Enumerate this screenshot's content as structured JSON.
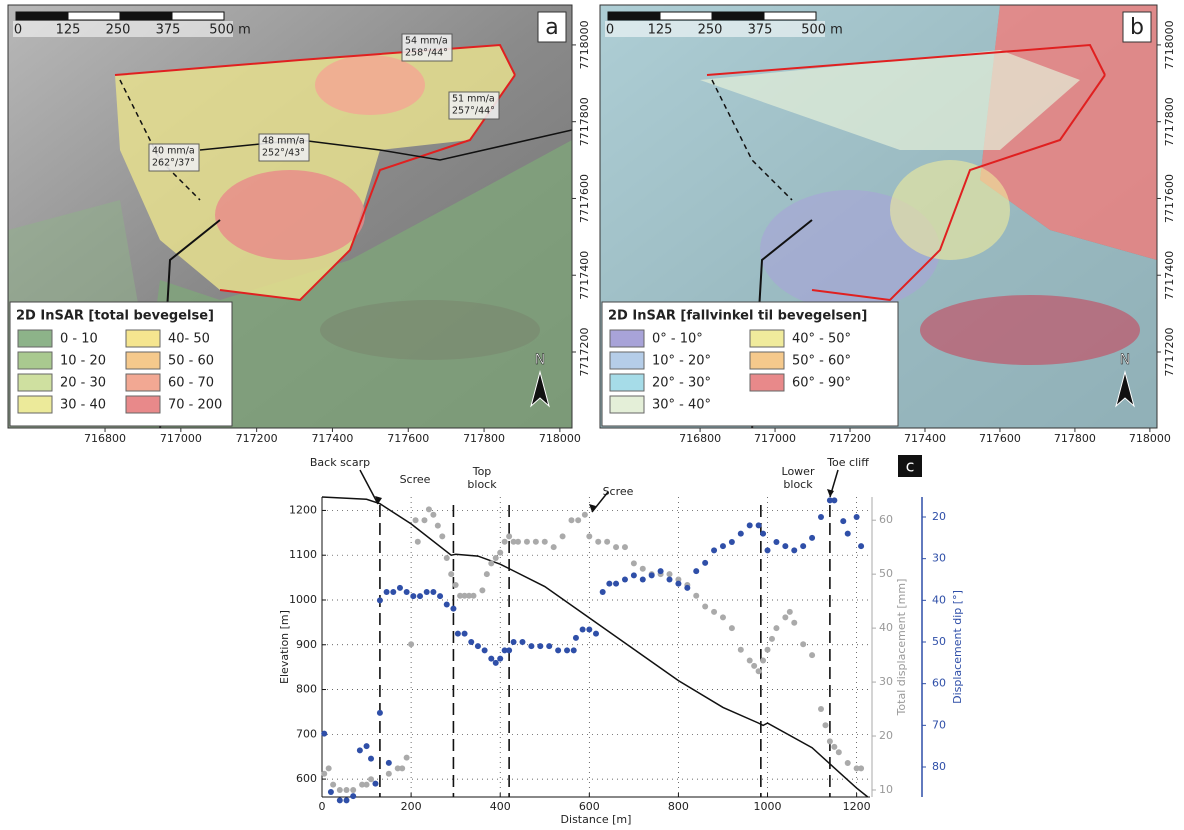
{
  "maps": [
    {
      "panel": "a",
      "scale_labels": [
        "0",
        "125",
        "250",
        "375",
        "500 m"
      ],
      "legend_title": "2D InSAR [total bevegelse]",
      "legend": [
        {
          "label": "0 - 10",
          "color": "#8db389"
        },
        {
          "label": "10 - 20",
          "color": "#a9c98f"
        },
        {
          "label": "20 - 30",
          "color": "#cfe0a0"
        },
        {
          "label": "30 - 40",
          "color": "#ecea9a"
        },
        {
          "label": "40- 50",
          "color": "#f5e58f"
        },
        {
          "label": "50 - 60",
          "color": "#f5c98c"
        },
        {
          "label": "60 - 70",
          "color": "#f2a893"
        },
        {
          "label": "70 - 200",
          "color": "#e8898a"
        }
      ],
      "annotations": [
        [
          "54 mm/a",
          "258°/44°"
        ],
        [
          "51 mm/a",
          "257°/44°"
        ],
        [
          "48 mm/a",
          "252°/43°"
        ],
        [
          "40 mm/a",
          "262°/37°"
        ]
      ],
      "north": "N",
      "xlim": [
        716544,
        718032
      ],
      "xticks": [
        716800,
        717000,
        717200,
        717400,
        717600,
        717800,
        718000
      ],
      "ylim": [
        7717002,
        7718104
      ],
      "yticks": [
        7717200,
        7717400,
        7717600,
        7717800,
        7718000
      ]
    },
    {
      "panel": "b",
      "scale_labels": [
        "0",
        "125",
        "250",
        "375",
        "500 m"
      ],
      "legend_title": "2D InSAR [fallvinkel til bevegelsen]",
      "legend": [
        {
          "label": "0° - 10°",
          "color": "#a8a3d8"
        },
        {
          "label": "10° - 20°",
          "color": "#b5cde8"
        },
        {
          "label": "20° - 30°",
          "color": "#a6dce8"
        },
        {
          "label": "30° - 40°",
          "color": "#e4efd8"
        },
        {
          "label": "40° - 50°",
          "color": "#f0eb9c"
        },
        {
          "label": "50° - 60°",
          "color": "#f5c98c"
        },
        {
          "label": "60° - 90°",
          "color": "#e8898a"
        }
      ],
      "annotations": [],
      "north": "N",
      "xlim": [
        716533,
        718019
      ],
      "xticks": [
        716800,
        717000,
        717200,
        717400,
        717600,
        717800,
        718000
      ],
      "ylim": [
        7717002,
        7718104
      ],
      "yticks": [
        7717200,
        7717400,
        7717600,
        7717800,
        7718000
      ]
    }
  ],
  "chart_data": {
    "type": "profile",
    "panel": "c",
    "xlabel": "Distance [m]",
    "ylabel": "Elevation [m]",
    "y2label": "Total displacement [mm]",
    "y3label": "Displacement dip [°]",
    "xlim": [
      0,
      1230
    ],
    "xticks": [
      0,
      200,
      400,
      600,
      800,
      1000,
      1200
    ],
    "ylim": [
      560,
      1230
    ],
    "yticks": [
      600,
      700,
      800,
      900,
      1000,
      1100,
      1200
    ],
    "y2lim": [
      8.7,
      64.3
    ],
    "y2ticks": [
      10,
      20,
      30,
      40,
      50,
      60
    ],
    "y3lim": [
      87.2,
      15.2
    ],
    "y3ticks": [
      20,
      30,
      40,
      50,
      60,
      70,
      80
    ],
    "grid": true,
    "dividers": [
      130,
      295,
      420,
      985,
      1140
    ],
    "annotations": [
      [
        "Back scarp"
      ],
      [
        "Scree"
      ],
      [
        "Top",
        "block"
      ],
      [
        "Scree"
      ],
      [
        "Lower",
        "block"
      ],
      [
        "Toe cliff"
      ]
    ],
    "series": [
      {
        "style": "line",
        "color": "#111111",
        "x": [
          0,
          100,
          130,
          200,
          290,
          300,
          350,
          400,
          420,
          500,
          600,
          700,
          800,
          900,
          980,
          990,
          1000,
          1100,
          1150,
          1200,
          1225
        ],
        "values": [
          1230,
          1225,
          1215,
          1170,
          1100,
          1102,
          1098,
          1080,
          1070,
          1030,
          960,
          890,
          820,
          760,
          725,
          720,
          725,
          670,
          625,
          580,
          560
        ]
      },
      {
        "style": "scatter",
        "axis": "y2",
        "color": "#aaaaaa",
        "x": [
          5,
          15,
          25,
          40,
          55,
          70,
          90,
          100,
          110,
          150,
          170,
          180,
          190,
          200,
          210,
          215,
          230,
          240,
          250,
          260,
          270,
          280,
          290,
          300,
          310,
          320,
          330,
          340,
          360,
          370,
          380,
          390,
          400,
          410,
          420,
          430,
          440,
          460,
          480,
          500,
          520,
          540,
          560,
          575,
          590,
          600,
          620,
          640,
          660,
          680,
          700,
          720,
          740,
          760,
          780,
          800,
          820,
          840,
          860,
          880,
          900,
          920,
          940,
          960,
          970,
          980,
          990,
          1000,
          1010,
          1020,
          1040,
          1050,
          1060,
          1080,
          1100,
          1120,
          1130,
          1140,
          1150,
          1160,
          1180,
          1200,
          1210
        ],
        "values": [
          13,
          14,
          11,
          10,
          10,
          10,
          11,
          11,
          12,
          13,
          14,
          14,
          16,
          37,
          60,
          56,
          60,
          62,
          61,
          59,
          57,
          53,
          50,
          48,
          46,
          46,
          46,
          46,
          47,
          50,
          52,
          53,
          54,
          56,
          57,
          56,
          56,
          56,
          56,
          56,
          55,
          57,
          60,
          60,
          61,
          57,
          56,
          56,
          55,
          55,
          52,
          51,
          50,
          50,
          50,
          49,
          48,
          46,
          44,
          43,
          42,
          40,
          36,
          34,
          33,
          32,
          34,
          36,
          38,
          40,
          42,
          43,
          41,
          37,
          35,
          25,
          22,
          19,
          18,
          17,
          15,
          14,
          14
        ]
      },
      {
        "style": "scatter",
        "axis": "y3",
        "color": "#2f4fa8",
        "x": [
          5,
          20,
          40,
          55,
          70,
          85,
          100,
          110,
          120,
          130,
          150,
          130,
          145,
          160,
          175,
          190,
          205,
          220,
          235,
          250,
          265,
          280,
          295,
          305,
          320,
          335,
          350,
          365,
          380,
          390,
          400,
          410,
          420,
          430,
          450,
          470,
          490,
          510,
          530,
          550,
          565,
          570,
          585,
          600,
          615,
          630,
          645,
          660,
          680,
          700,
          720,
          740,
          760,
          780,
          800,
          820,
          840,
          860,
          880,
          900,
          920,
          940,
          960,
          980,
          990,
          1000,
          1020,
          1040,
          1060,
          1080,
          1100,
          1120,
          1140,
          1150,
          1170,
          1180,
          1200,
          1210
        ],
        "values": [
          72,
          86,
          88,
          88,
          87,
          76,
          75,
          78,
          84,
          67,
          79,
          40,
          38,
          38,
          37,
          38,
          39,
          39,
          38,
          38,
          39,
          41,
          42,
          48,
          48,
          50,
          51,
          52,
          54,
          55,
          54,
          52,
          52,
          50,
          50,
          51,
          51,
          51,
          52,
          52,
          52,
          49,
          47,
          47,
          48,
          38,
          36,
          36,
          35,
          34,
          35,
          34,
          33,
          35,
          36,
          37,
          33,
          31,
          28,
          27,
          26,
          24,
          22,
          22,
          24,
          28,
          26,
          27,
          28,
          27,
          25,
          20,
          16,
          16,
          21,
          24,
          20,
          27
        ]
      }
    ]
  }
}
